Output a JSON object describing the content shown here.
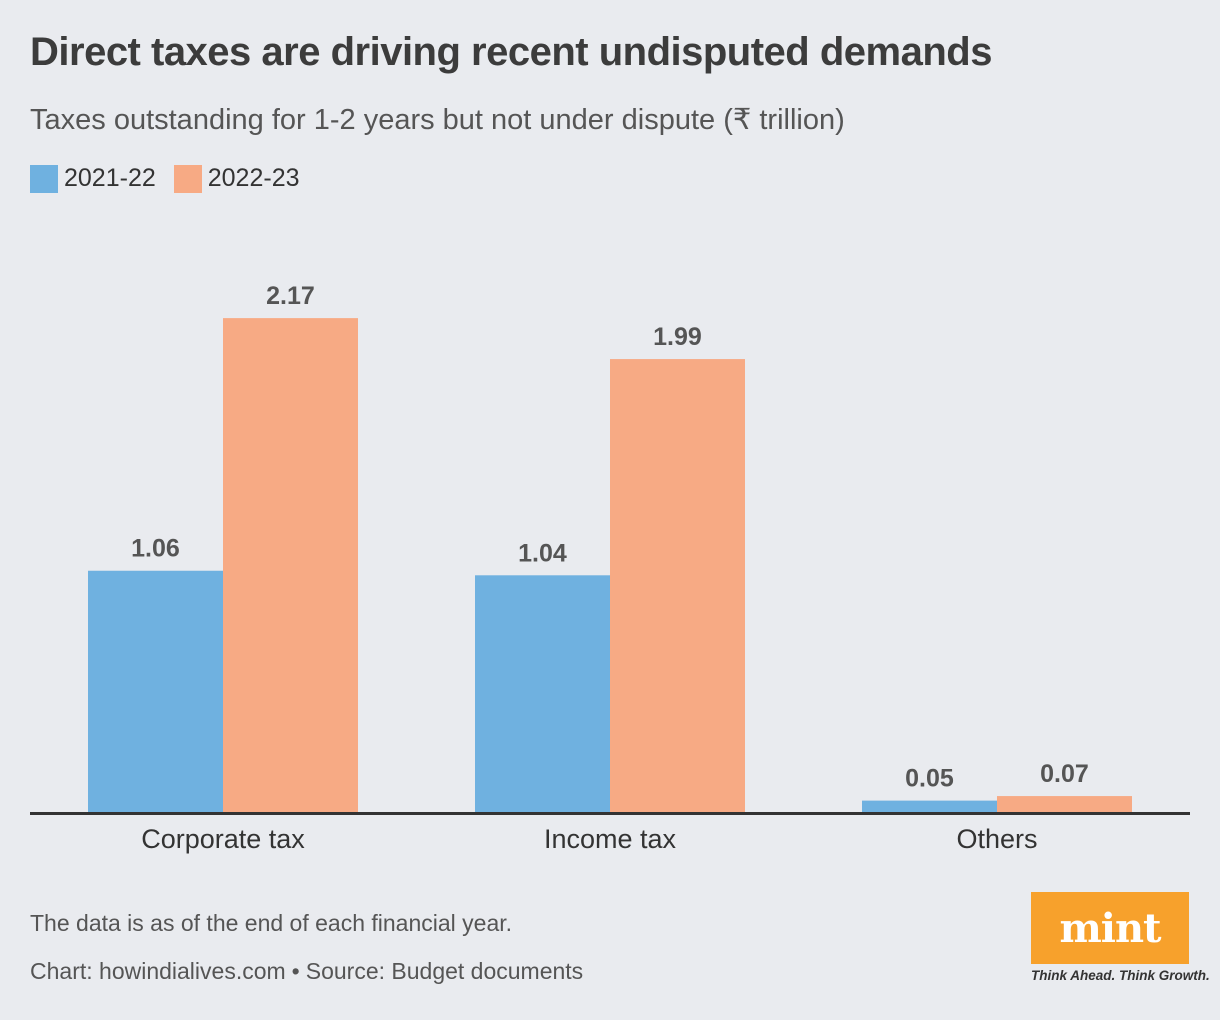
{
  "title": "Direct taxes are driving recent undisputed demands",
  "subtitle": "Taxes outstanding for 1-2 years but not under dispute (₹ trillion)",
  "colors": {
    "series_2021_22": "#6fb1e0",
    "series_2022_23": "#f7aa84",
    "axis": "#333333",
    "label": "#555555"
  },
  "chart_data": {
    "type": "bar",
    "title": "Direct taxes are driving recent undisputed demands",
    "ylabel": "₹ trillion",
    "xlabel": "",
    "ylim": [
      0,
      2.4
    ],
    "grid": false,
    "legend_position": "top-left",
    "categories": [
      "Corporate tax",
      "Income tax",
      "Others"
    ],
    "series": [
      {
        "name": "2021-22",
        "values": [
          1.06,
          1.04,
          0.05
        ],
        "labels": [
          "1.06",
          "1.04",
          "0.05"
        ]
      },
      {
        "name": "2022-23",
        "values": [
          2.17,
          1.99,
          0.07
        ],
        "labels": [
          "2.17",
          "1.99",
          "0.07"
        ]
      }
    ]
  },
  "footer": {
    "note": "The data is as of the end of each financial year.",
    "chart_credit": "Chart: howindialives.com",
    "separator": "•",
    "source": "Source: Budget documents"
  },
  "brand": {
    "name": "mint",
    "tagline": "Think Ahead. Think Growth."
  }
}
